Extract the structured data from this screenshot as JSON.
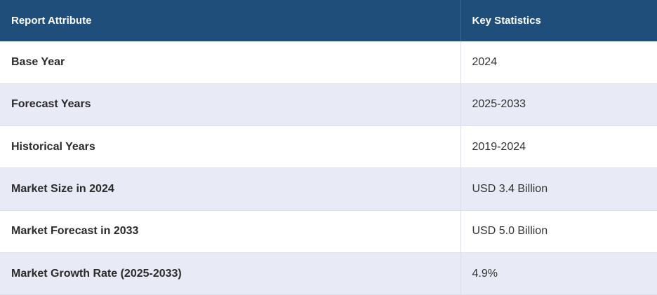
{
  "table": {
    "header": [
      "Report Attribute",
      "Key Statistics"
    ],
    "rows": [
      [
        "Base Year",
        "2024"
      ],
      [
        "Forecast Years",
        "2025-2033"
      ],
      [
        "Historical Years",
        "2019-2024"
      ],
      [
        "Market Size in 2024",
        "USD 3.4 Billion"
      ],
      [
        "Market Forecast in 2033",
        "USD 5.0 Billion"
      ],
      [
        "Market Growth Rate (2025-2033)",
        "4.9%"
      ]
    ]
  }
}
